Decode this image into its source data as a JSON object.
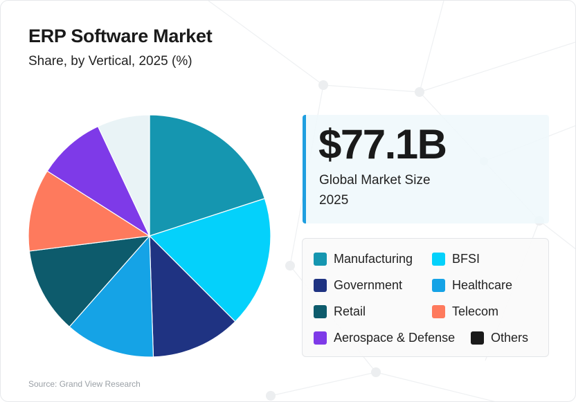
{
  "title": "ERP Software Market",
  "subtitle": "Share, by Vertical, 2025 (%)",
  "kpi": {
    "value": "$77.1B",
    "label": "Global Market Size\n2025"
  },
  "source": "Source: Grand View Research",
  "chart_data": {
    "type": "pie",
    "title": "ERP Software Market",
    "subtitle": "Share, by Vertical, 2025 (%)",
    "categories": [
      "Manufacturing",
      "BFSI",
      "Government",
      "Healthcare",
      "Retail",
      "Telecom",
      "Aerospace & Defense",
      "Others"
    ],
    "values": [
      20.0,
      17.5,
      12.0,
      12.0,
      11.5,
      11.0,
      9.0,
      7.0
    ],
    "colors": [
      "#1596b0",
      "#04d1fb",
      "#1f3382",
      "#15a3e6",
      "#0d5b6c",
      "#fe7a5d",
      "#7e3ae8",
      "#e9f3f6"
    ],
    "legend_colors": [
      "#1596b0",
      "#04d1fb",
      "#1f3382",
      "#15a3e6",
      "#0d5b6c",
      "#fe7a5d",
      "#7e3ae8",
      "#1a1a1a"
    ],
    "start": "12 o'clock, clockwise",
    "legend": "right"
  }
}
